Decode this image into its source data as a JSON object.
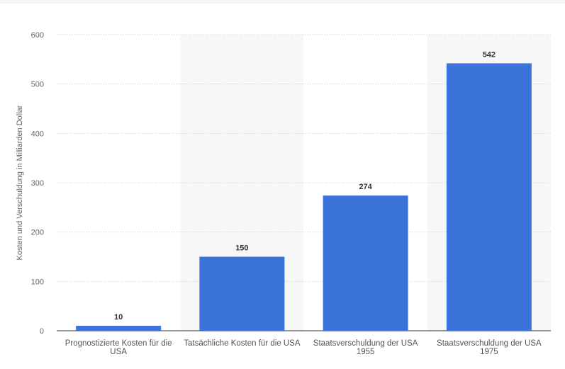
{
  "chart_data": {
    "type": "bar",
    "y_label": "Kosten und Verschuldung in Milliarden Dollar",
    "categories": [
      "Prognostizierte Kosten für die USA",
      "Tatsächliche Kosten für die USA",
      "Staatsverschuldung der USA 1955",
      "Staatsverschuldung der USA 1975"
    ],
    "values": [
      10,
      150,
      274,
      542
    ],
    "color": "#3c73db",
    "ylim": [
      0,
      600
    ],
    "yticks": [
      0,
      100,
      200,
      300,
      400,
      500,
      600
    ],
    "grid": true
  }
}
